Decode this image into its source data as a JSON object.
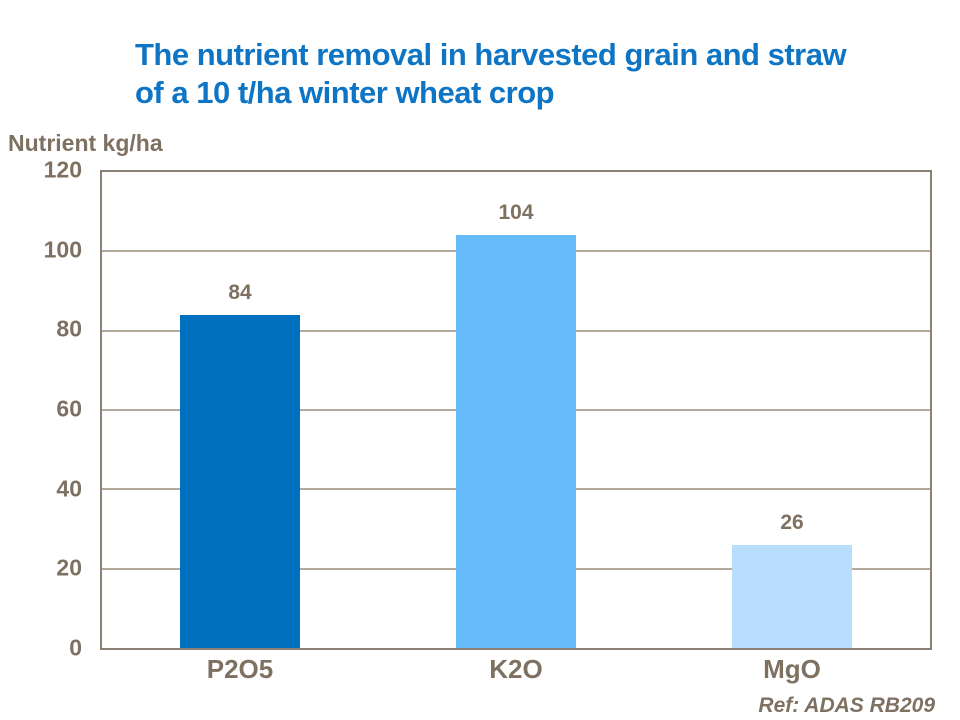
{
  "title": {
    "line1": "The nutrient removal in harvested grain and straw",
    "line2": "of a 10 t/ha winter wheat crop"
  },
  "footer": {
    "reference": "Ref: ADAS RB209"
  },
  "colors": {
    "title_blue": "#0E74C4",
    "text_brown": "#7E7162",
    "grid_line": "#B3AA9C",
    "plot_border": "#8A8174"
  },
  "chart_data": {
    "type": "bar",
    "categories": [
      "P2O5",
      "K2O",
      "MgO"
    ],
    "values": [
      84,
      104,
      26
    ],
    "bar_colors": [
      "#0071BE",
      "#66BBFB",
      "#B9DDFC"
    ],
    "title": "The nutrient removal in harvested grain and straw of a 10 t/ha winter wheat crop",
    "xlabel": "",
    "ylabel": "Nutrient kg/ha",
    "ylim": [
      0,
      120
    ],
    "ytick_step": 20,
    "grid": true,
    "legend": false,
    "data_labels": true
  }
}
